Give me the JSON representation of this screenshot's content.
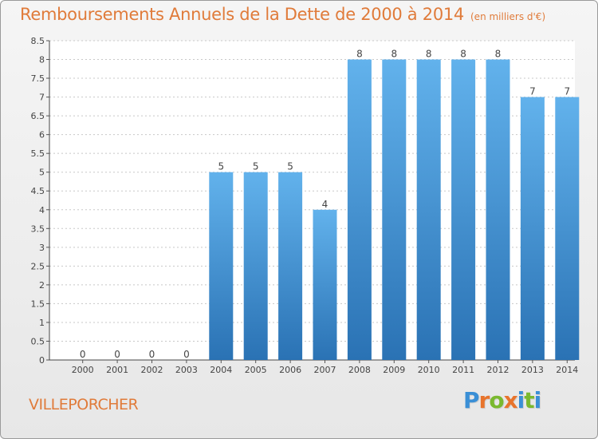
{
  "title": "Remboursements Annuels de la Dette de 2000 à 2014",
  "subtitle": "(en milliers d'€)",
  "town": "VILLEPORCHER",
  "logo": {
    "text": "Proxiti",
    "letters": [
      "P",
      "r",
      "o",
      "x",
      "i",
      "t",
      "i"
    ],
    "colors": [
      "#3a8fd6",
      "#e8742c",
      "#7ab92f",
      "#e8742c",
      "#3a8fd6",
      "#7ab92f",
      "#3a8fd6"
    ]
  },
  "colors": {
    "title": "#e07b3a",
    "bar_top": "#62b2ec",
    "bar_bottom": "#2a72b4",
    "grid": "#c8c8c8"
  },
  "chart_data": {
    "type": "bar",
    "categories": [
      "2000",
      "2001",
      "2002",
      "2003",
      "2004",
      "2005",
      "2006",
      "2007",
      "2008",
      "2009",
      "2010",
      "2011",
      "2012",
      "2013",
      "2014"
    ],
    "values": [
      0,
      0,
      0,
      0,
      5,
      5,
      5,
      4,
      8,
      8,
      8,
      8,
      8,
      7,
      7
    ],
    "ylim": [
      0,
      8.5
    ],
    "yticks": [
      "0",
      "0.5",
      "1",
      "1.5",
      "2",
      "2.5",
      "3",
      "3.5",
      "4",
      "4.5",
      "5",
      "5.5",
      "6",
      "6.5",
      "7",
      "7.5",
      "8",
      "8.5"
    ],
    "grid": true
  }
}
